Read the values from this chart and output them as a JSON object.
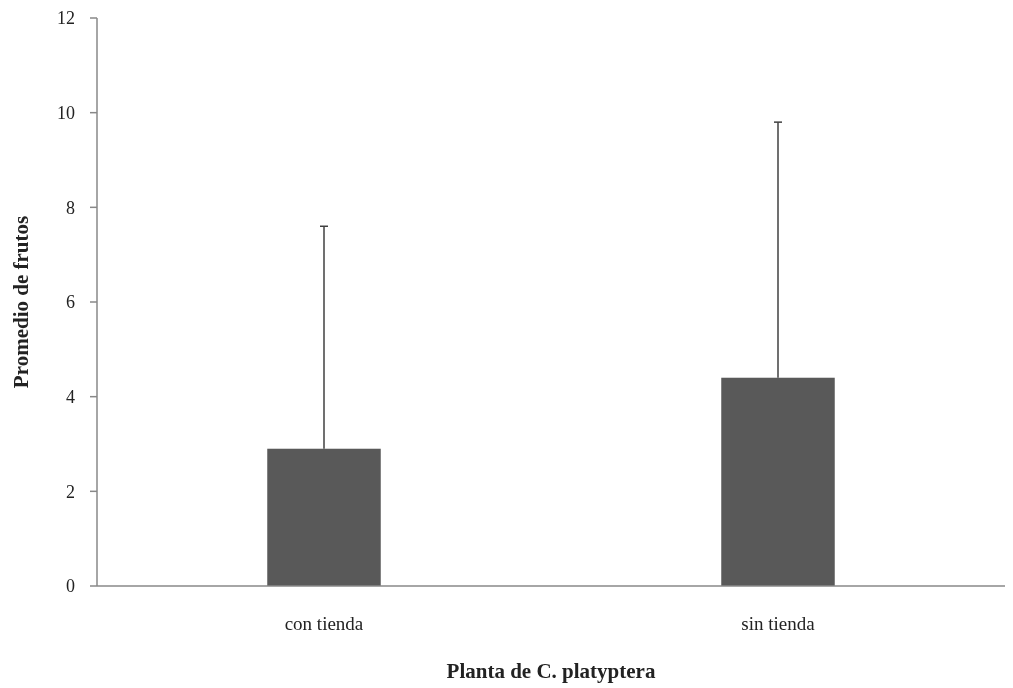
{
  "chart_data": {
    "type": "bar",
    "xlabel": "Planta de C. platyptera",
    "ylabel": "Promedio de frutos",
    "categories": [
      "con tienda",
      "sin tienda"
    ],
    "values": [
      2.9,
      4.4
    ],
    "errors": [
      [
        2.9,
        7.6
      ],
      [
        4.4,
        9.8
      ]
    ],
    "color": "#595959",
    "ylim": [
      0,
      12
    ],
    "yticks": [
      0,
      2,
      4,
      6,
      8,
      10,
      12
    ],
    "grid": false
  }
}
